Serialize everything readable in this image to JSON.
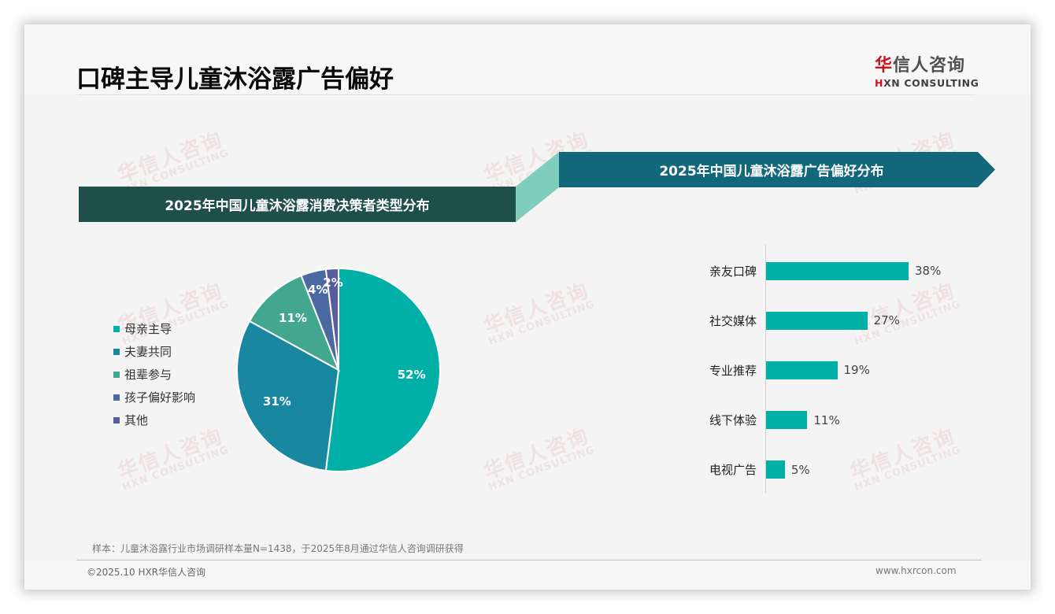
{
  "header": {
    "title": "口碑主导儿童沐浴露广告偏好",
    "logo": {
      "cn_prefix": "华",
      "cn_rest": "信人咨询",
      "en_prefix": "H",
      "en_rest": "XN CONSULTING"
    }
  },
  "watermark": {
    "cn": "华信人咨询",
    "en": "HXN CONSULTING"
  },
  "banners": {
    "left": "2025年中国儿童沐浴露消费决策者类型分布",
    "right": "2025年中国儿童沐浴露广告偏好分布"
  },
  "colors": {
    "banner_left": "#1f4f4a",
    "banner_right": "#12687a",
    "banner_connector": "#7fcdbb",
    "bar": "#00afa5",
    "brand_red": "#d0121b"
  },
  "chart_data": [
    {
      "type": "pie",
      "title": "2025年中国儿童沐浴露消费决策者类型分布",
      "categories": [
        "母亲主导",
        "夫妻共同",
        "祖辈参与",
        "孩子偏好影响",
        "其他"
      ],
      "values": [
        52,
        31,
        11,
        4,
        2
      ],
      "labels": [
        "52%",
        "31%",
        "11%",
        "4%",
        "2%"
      ],
      "colors": [
        "#00afa5",
        "#1a87a1",
        "#43a790",
        "#4a68a2",
        "#5a5aa0"
      ],
      "legend_position": "left",
      "unit": "%"
    },
    {
      "type": "bar",
      "orientation": "horizontal",
      "title": "2025年中国儿童沐浴露广告偏好分布",
      "categories": [
        "亲友口碑",
        "社交媒体",
        "专业推荐",
        "线下体验",
        "电视广告"
      ],
      "values": [
        38,
        27,
        19,
        11,
        5
      ],
      "labels": [
        "38%",
        "27%",
        "19%",
        "11%",
        "5%"
      ],
      "color": "#00afa5",
      "grid": false,
      "unit": "%"
    }
  ],
  "legend": {
    "items": [
      {
        "label": "母亲主导",
        "color": "#00afa5"
      },
      {
        "label": "夫妻共同",
        "color": "#1a87a1"
      },
      {
        "label": "祖辈参与",
        "color": "#43a790"
      },
      {
        "label": "孩子偏好影响",
        "color": "#4a68a2"
      },
      {
        "label": "其他",
        "color": "#5a5aa0"
      }
    ]
  },
  "footer": {
    "source": "样本：儿童沐浴露行业市场调研样本量N=1438，于2025年8月通过华信人咨询调研获得",
    "copyright": "©2025.10 HXR华信人咨询",
    "website": "www.hxrcon.com"
  }
}
